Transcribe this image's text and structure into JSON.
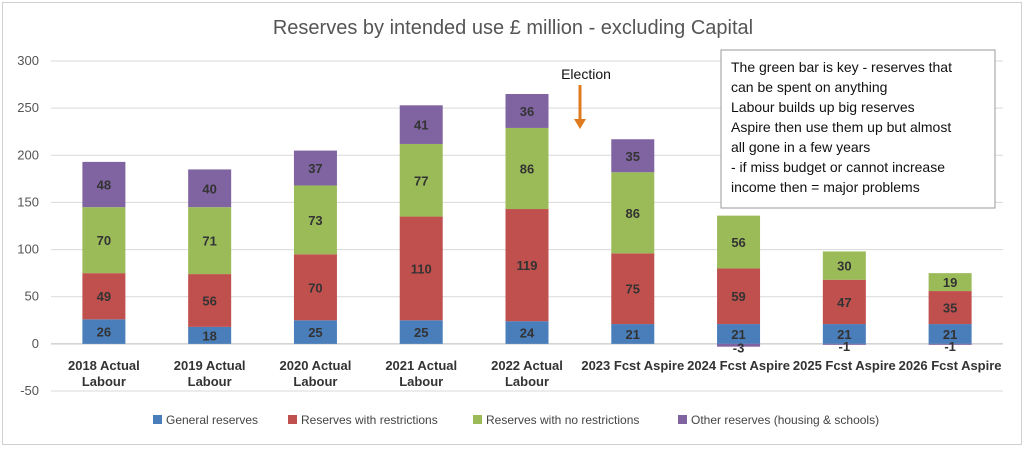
{
  "chart_data": {
    "type": "bar",
    "stacked": true,
    "title": "Reserves by intended use £ million - excluding Capital",
    "categories": [
      [
        "2018 Actual",
        "Labour"
      ],
      [
        "2019 Actual",
        "Labour"
      ],
      [
        "2020 Actual",
        "Labour"
      ],
      [
        "2021 Actual",
        "Labour"
      ],
      [
        "2022 Actual",
        "Labour"
      ],
      [
        "2023 Fcst Aspire"
      ],
      [
        "2024 Fcst Aspire"
      ],
      [
        "2025 Fcst Aspire"
      ],
      [
        "2026 Fcst Aspire"
      ]
    ],
    "ylim": [
      -50,
      300
    ],
    "yticks": [
      -50,
      0,
      50,
      100,
      150,
      200,
      250,
      300
    ],
    "grid": true,
    "legend_position": "bottom",
    "series": [
      {
        "name": "General reserves",
        "color": "#4a7ebb",
        "values": [
          26,
          18,
          25,
          25,
          24,
          21,
          21,
          21,
          21
        ]
      },
      {
        "name": "Reserves with restrictions",
        "color": "#c0504d",
        "values": [
          49,
          56,
          70,
          110,
          119,
          75,
          59,
          47,
          35
        ]
      },
      {
        "name": "Reserves with no restrictions",
        "color": "#9bbb59",
        "values": [
          70,
          71,
          73,
          77,
          86,
          86,
          56,
          30,
          19
        ]
      },
      {
        "name": "Other reserves (housing & schools)",
        "color": "#8064a2",
        "values": [
          48,
          40,
          37,
          41,
          36,
          35,
          -3,
          -1,
          -1
        ]
      }
    ],
    "annotations": {
      "election_label": "Election",
      "note_lines": [
        "The green bar is key - reserves that",
        "can be spent on anything",
        "Labour builds up big reserves",
        "Aspire then use them up but almost",
        "all gone in a few years",
        "- if miss budget or cannot increase",
        "income then = major problems"
      ]
    }
  }
}
